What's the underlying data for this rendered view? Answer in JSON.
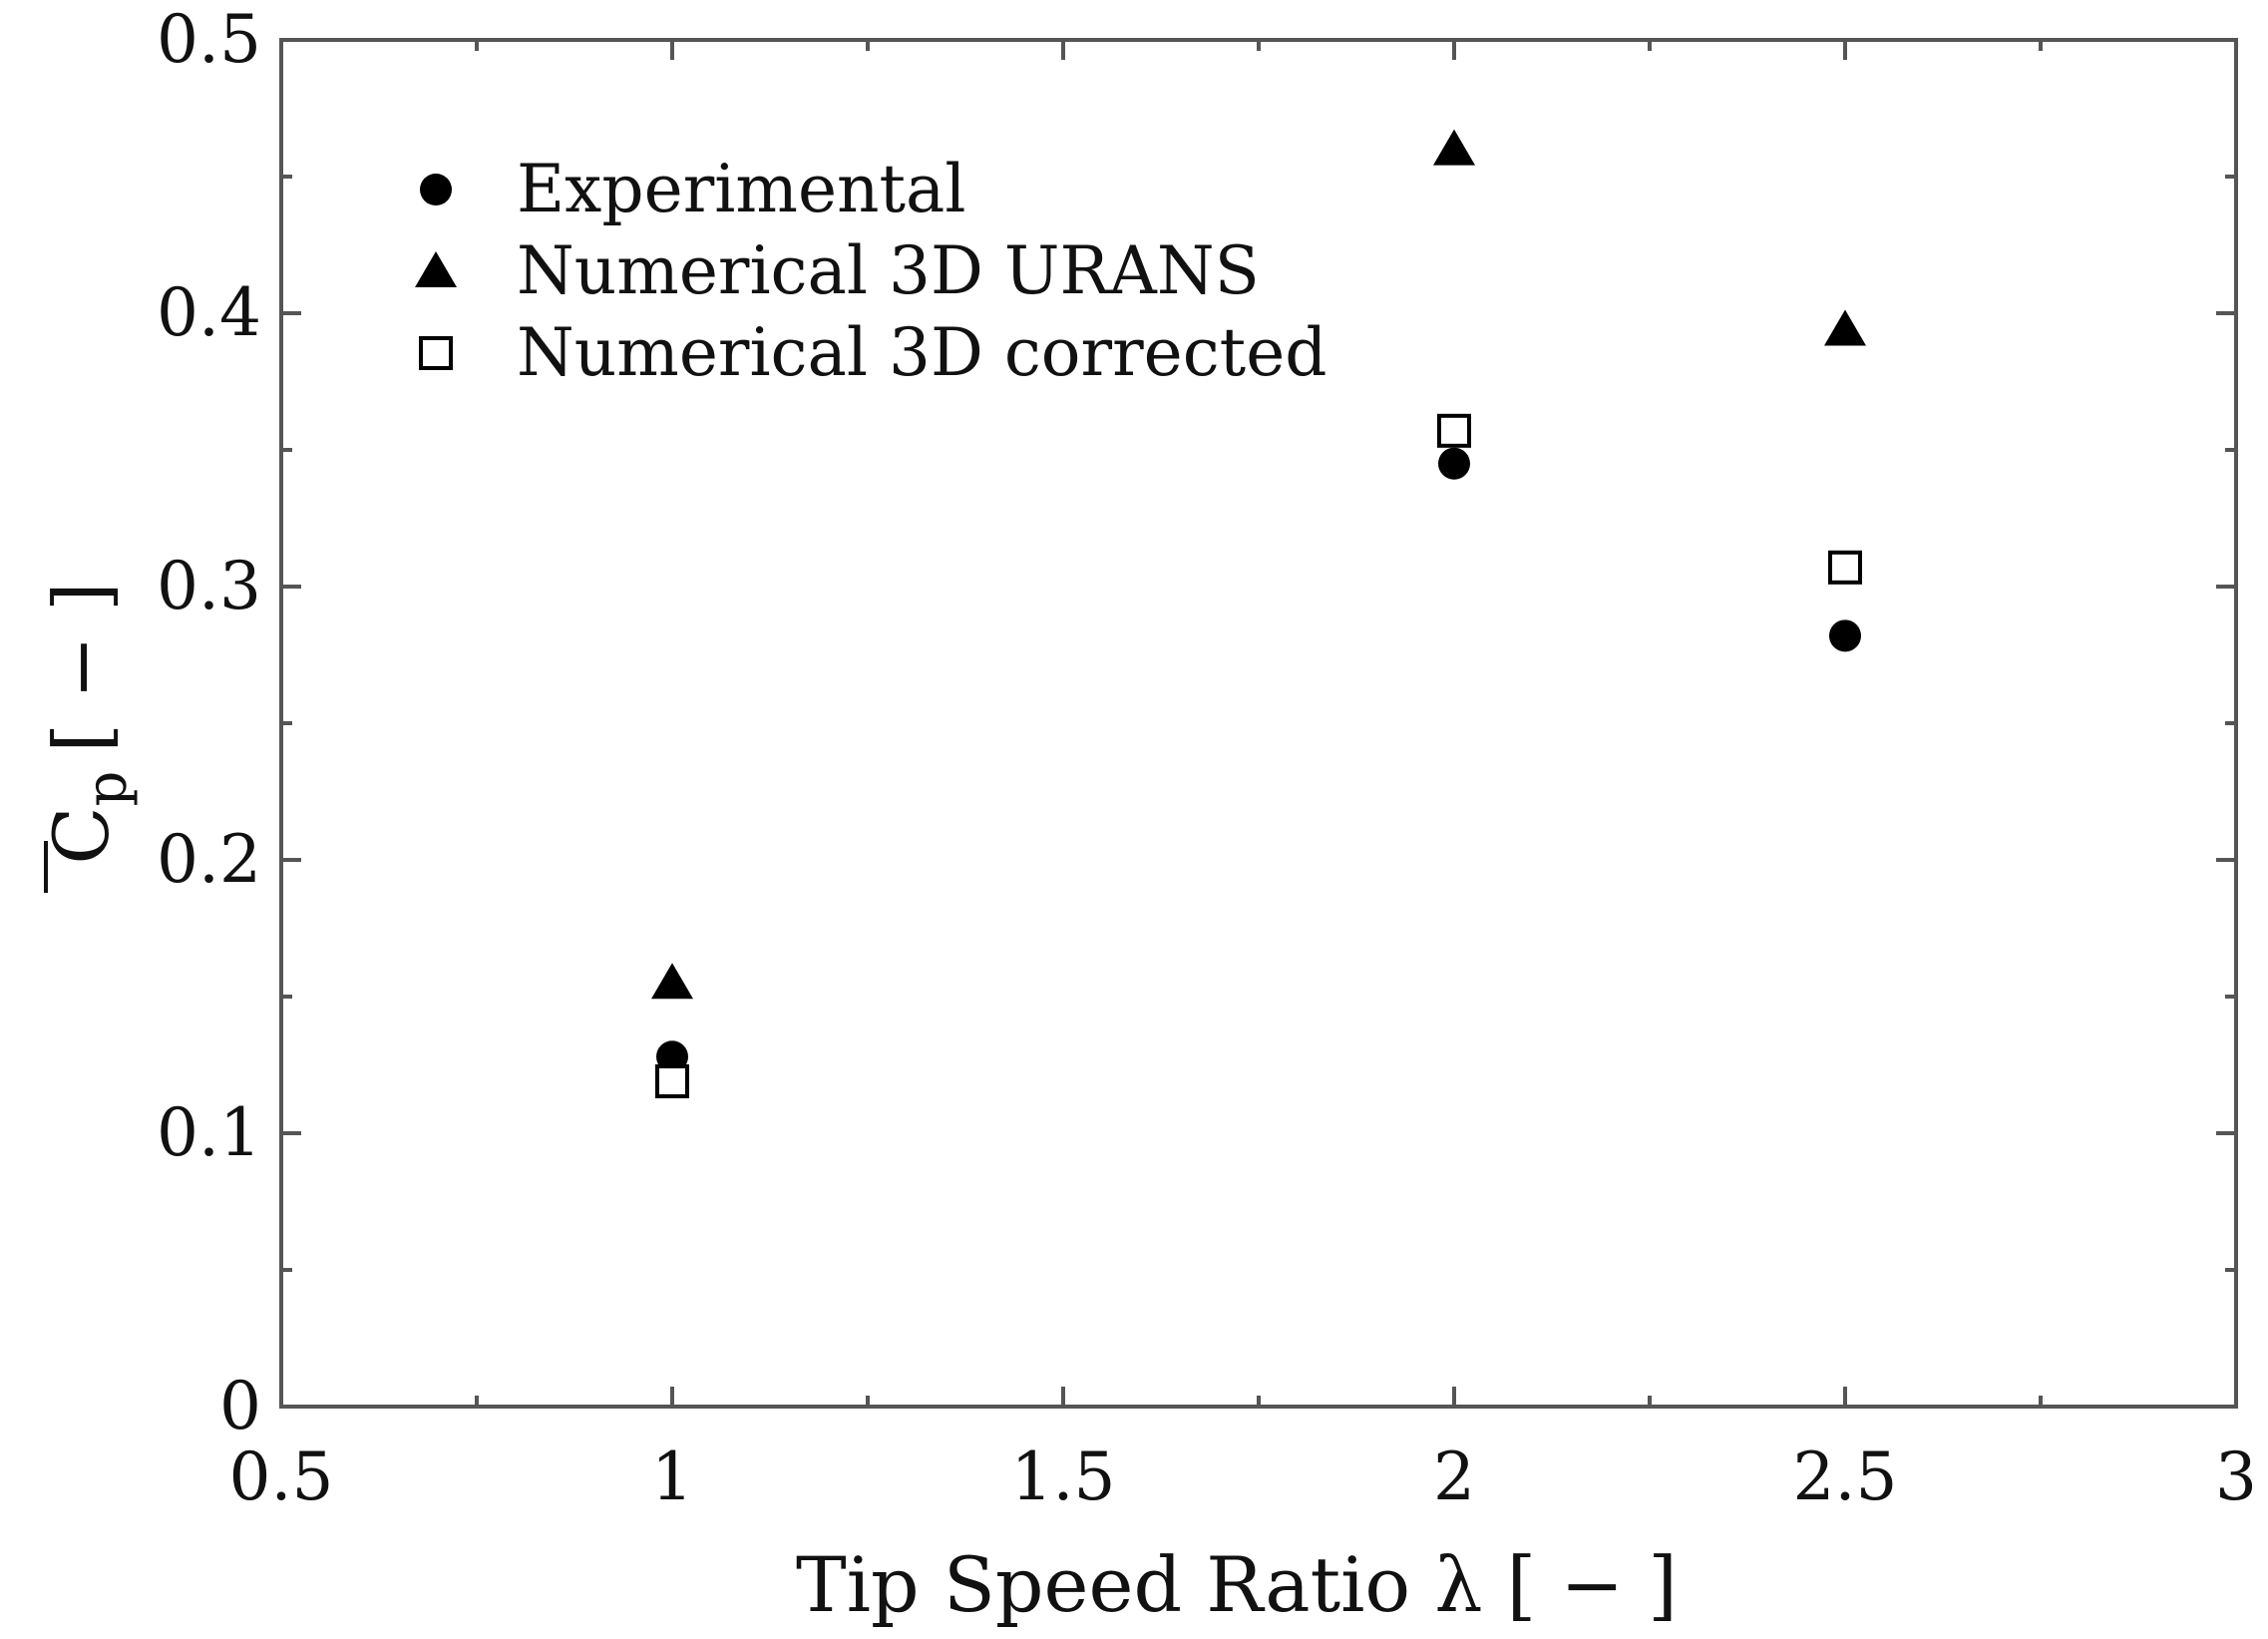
{
  "chart_data": {
    "type": "scatter",
    "title": "",
    "xlabel": "Tip Speed Ratio λ [ − ]",
    "ylabel_symbol": "C",
    "ylabel_subscript": "p",
    "ylabel_units": "[ − ]",
    "xlim": [
      0.5,
      3
    ],
    "ylim": [
      0,
      0.5
    ],
    "xticks": [
      0.5,
      1,
      1.5,
      2,
      2.5,
      3
    ],
    "xtick_labels": [
      "0.5",
      "1",
      "1.5",
      "2",
      "2.5",
      "3"
    ],
    "yticks": [
      0,
      0.1,
      0.2,
      0.3,
      0.4,
      0.5
    ],
    "ytick_labels": [
      "0",
      "0.1",
      "0.2",
      "0.3",
      "0.4",
      "0.5"
    ],
    "grid": false,
    "legend_position": "top-left",
    "series": [
      {
        "name": "Experimental",
        "marker": "filled-circle",
        "x": [
          1,
          2,
          2.5
        ],
        "y": [
          0.128,
          0.345,
          0.282
        ]
      },
      {
        "name": "Numerical 3D URANS",
        "marker": "filled-triangle",
        "x": [
          1,
          2,
          2.5
        ],
        "y": [
          0.155,
          0.46,
          0.394
        ]
      },
      {
        "name": "Numerical 3D corrected",
        "marker": "open-square",
        "x": [
          1,
          2,
          2.5
        ],
        "y": [
          0.119,
          0.357,
          0.307
        ]
      }
    ],
    "colors": {
      "marker": "#000000",
      "axis": "#555555"
    }
  }
}
